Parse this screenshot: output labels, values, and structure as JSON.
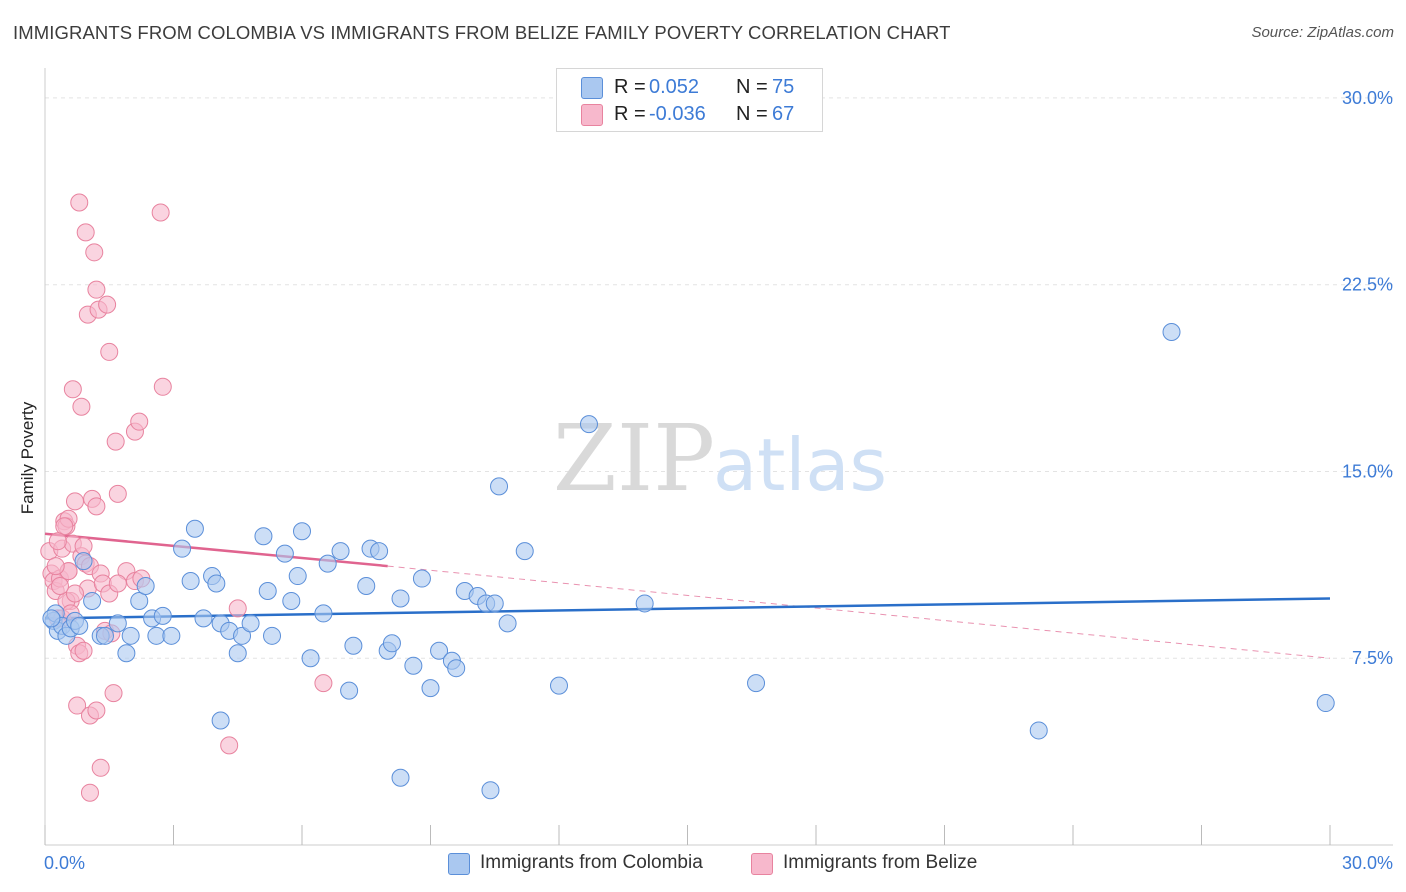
{
  "title": "IMMIGRANTS FROM COLOMBIA VS IMMIGRANTS FROM BELIZE FAMILY POVERTY CORRELATION CHART",
  "source": "Source: ZipAtlas.com",
  "watermark": {
    "zip": "ZIP",
    "atlas": "atlas"
  },
  "legend_top": [
    {
      "r_label": "R =",
      "r_value": "0.052",
      "n_label": "N =",
      "n_value": "75"
    },
    {
      "r_label": "R =",
      "r_value": "-0.036",
      "n_label": "N =",
      "n_value": "67"
    }
  ],
  "legend_bottom": [
    {
      "label": "Immigrants from Colombia"
    },
    {
      "label": "Immigrants from Belize"
    }
  ],
  "colors": {
    "colombia_fill": "#aac8f0",
    "colombia_stroke": "#5b8fd9",
    "colombia_line": "#2a6fc9",
    "belize_fill": "#f7b8cc",
    "belize_stroke": "#e8839f",
    "belize_line": "#e0648f",
    "tick_label": "#3d7bd6",
    "grid": "#e3e3e3"
  },
  "chart_data": {
    "type": "scatter",
    "title": "IMMIGRANTS FROM COLOMBIA VS IMMIGRANTS FROM BELIZE FAMILY POVERTY CORRELATION CHART",
    "xlabel": "",
    "ylabel": "Family Poverty",
    "xlim": [
      0,
      30
    ],
    "ylim": [
      0,
      30.8
    ],
    "x_tick_labels": [
      "0.0%",
      "30.0%"
    ],
    "y_ticks": [
      {
        "value": 7.5,
        "label": "7.5%"
      },
      {
        "value": 15.0,
        "label": "15.0%"
      },
      {
        "value": 22.5,
        "label": "22.5%"
      },
      {
        "value": 30.0,
        "label": "30.0%"
      }
    ],
    "series": [
      {
        "name": "Immigrants from Colombia",
        "r": 0.052,
        "n": 75,
        "trend": {
          "x": [
            0,
            30
          ],
          "y": [
            9.1,
            9.9
          ],
          "style": "solid"
        },
        "points": [
          [
            0.2,
            9.0
          ],
          [
            0.25,
            9.3
          ],
          [
            0.3,
            8.6
          ],
          [
            0.4,
            8.8
          ],
          [
            0.5,
            8.4
          ],
          [
            0.6,
            8.7
          ],
          [
            0.7,
            9.0
          ],
          [
            0.8,
            8.8
          ],
          [
            0.9,
            11.4
          ],
          [
            1.1,
            9.8
          ],
          [
            1.3,
            8.4
          ],
          [
            1.4,
            8.4
          ],
          [
            1.7,
            8.9
          ],
          [
            1.9,
            7.7
          ],
          [
            2.0,
            8.4
          ],
          [
            2.2,
            9.8
          ],
          [
            2.35,
            10.4
          ],
          [
            2.5,
            9.1
          ],
          [
            2.6,
            8.4
          ],
          [
            2.75,
            9.2
          ],
          [
            2.95,
            8.4
          ],
          [
            3.2,
            11.9
          ],
          [
            3.4,
            10.6
          ],
          [
            3.5,
            12.7
          ],
          [
            3.7,
            9.1
          ],
          [
            3.9,
            10.8
          ],
          [
            4.0,
            10.5
          ],
          [
            4.1,
            8.9
          ],
          [
            4.3,
            8.6
          ],
          [
            4.5,
            7.7
          ],
          [
            4.6,
            8.4
          ],
          [
            4.8,
            8.9
          ],
          [
            5.1,
            12.4
          ],
          [
            5.2,
            10.2
          ],
          [
            5.3,
            8.4
          ],
          [
            5.6,
            11.7
          ],
          [
            5.75,
            9.8
          ],
          [
            5.9,
            10.8
          ],
          [
            6.0,
            12.6
          ],
          [
            6.2,
            7.5
          ],
          [
            6.5,
            9.3
          ],
          [
            6.6,
            11.3
          ],
          [
            6.9,
            11.8
          ],
          [
            7.1,
            6.2
          ],
          [
            7.2,
            8.0
          ],
          [
            7.5,
            10.4
          ],
          [
            7.6,
            11.9
          ],
          [
            7.8,
            11.8
          ],
          [
            8.0,
            7.8
          ],
          [
            8.1,
            8.1
          ],
          [
            8.3,
            9.9
          ],
          [
            8.6,
            7.2
          ],
          [
            8.8,
            10.7
          ],
          [
            9.0,
            6.3
          ],
          [
            9.2,
            7.8
          ],
          [
            9.5,
            7.4
          ],
          [
            9.6,
            7.1
          ],
          [
            9.8,
            10.2
          ],
          [
            10.1,
            10.0
          ],
          [
            10.3,
            9.7
          ],
          [
            10.5,
            9.7
          ],
          [
            10.6,
            14.4
          ],
          [
            10.8,
            8.9
          ],
          [
            11.2,
            11.8
          ],
          [
            12.0,
            6.4
          ],
          [
            12.7,
            16.9
          ],
          [
            14.0,
            9.7
          ],
          [
            16.6,
            6.5
          ],
          [
            23.2,
            4.6
          ],
          [
            26.3,
            20.6
          ],
          [
            29.9,
            5.7
          ],
          [
            4.1,
            5.0
          ],
          [
            8.3,
            2.7
          ],
          [
            10.4,
            2.2
          ],
          [
            0.15,
            9.1
          ]
        ]
      },
      {
        "name": "Immigrants from Belize",
        "r": -0.036,
        "n": 67,
        "trend": {
          "x": [
            0,
            8
          ],
          "y": [
            12.5,
            11.2
          ],
          "style": "solid",
          "dashed_extension_x": [
            8,
            30
          ],
          "dashed_extension_y": [
            11.2,
            7.5
          ]
        },
        "points": [
          [
            0.1,
            11.8
          ],
          [
            0.15,
            10.9
          ],
          [
            0.2,
            10.6
          ],
          [
            0.25,
            10.2
          ],
          [
            0.3,
            9.1
          ],
          [
            0.35,
            10.7
          ],
          [
            0.4,
            11.9
          ],
          [
            0.45,
            13.0
          ],
          [
            0.5,
            12.8
          ],
          [
            0.55,
            11.0
          ],
          [
            0.6,
            9.8
          ],
          [
            0.65,
            12.1
          ],
          [
            0.7,
            13.8
          ],
          [
            0.75,
            8.0
          ],
          [
            0.8,
            7.7
          ],
          [
            0.85,
            11.6
          ],
          [
            0.9,
            12.0
          ],
          [
            0.95,
            11.3
          ],
          [
            1.0,
            10.3
          ],
          [
            1.05,
            11.2
          ],
          [
            1.1,
            13.9
          ],
          [
            1.2,
            13.6
          ],
          [
            1.3,
            10.9
          ],
          [
            1.35,
            10.5
          ],
          [
            1.4,
            8.6
          ],
          [
            1.5,
            10.1
          ],
          [
            1.6,
            6.1
          ],
          [
            1.7,
            14.1
          ],
          [
            1.9,
            11.0
          ],
          [
            2.1,
            10.6
          ],
          [
            0.8,
            25.8
          ],
          [
            0.95,
            24.6
          ],
          [
            1.15,
            23.8
          ],
          [
            1.2,
            22.3
          ],
          [
            1.0,
            21.3
          ],
          [
            1.25,
            21.5
          ],
          [
            1.45,
            21.7
          ],
          [
            1.5,
            19.8
          ],
          [
            0.65,
            18.3
          ],
          [
            0.85,
            17.6
          ],
          [
            2.75,
            18.4
          ],
          [
            1.65,
            16.2
          ],
          [
            2.1,
            16.6
          ],
          [
            2.2,
            17.0
          ],
          [
            2.7,
            25.4
          ],
          [
            0.55,
            13.1
          ],
          [
            0.45,
            12.8
          ],
          [
            0.5,
            9.8
          ],
          [
            0.55,
            11.0
          ],
          [
            0.7,
            10.1
          ],
          [
            0.75,
            5.6
          ],
          [
            1.05,
            5.2
          ],
          [
            1.2,
            5.4
          ],
          [
            1.3,
            3.1
          ],
          [
            1.05,
            2.1
          ],
          [
            4.5,
            9.5
          ],
          [
            4.3,
            4.0
          ],
          [
            6.5,
            6.5
          ],
          [
            1.7,
            10.5
          ],
          [
            2.25,
            10.7
          ],
          [
            0.35,
            10.4
          ],
          [
            0.4,
            9.1
          ],
          [
            0.6,
            9.3
          ],
          [
            0.25,
            11.2
          ],
          [
            0.9,
            7.8
          ],
          [
            1.55,
            8.5
          ],
          [
            0.3,
            12.2
          ]
        ]
      }
    ]
  }
}
